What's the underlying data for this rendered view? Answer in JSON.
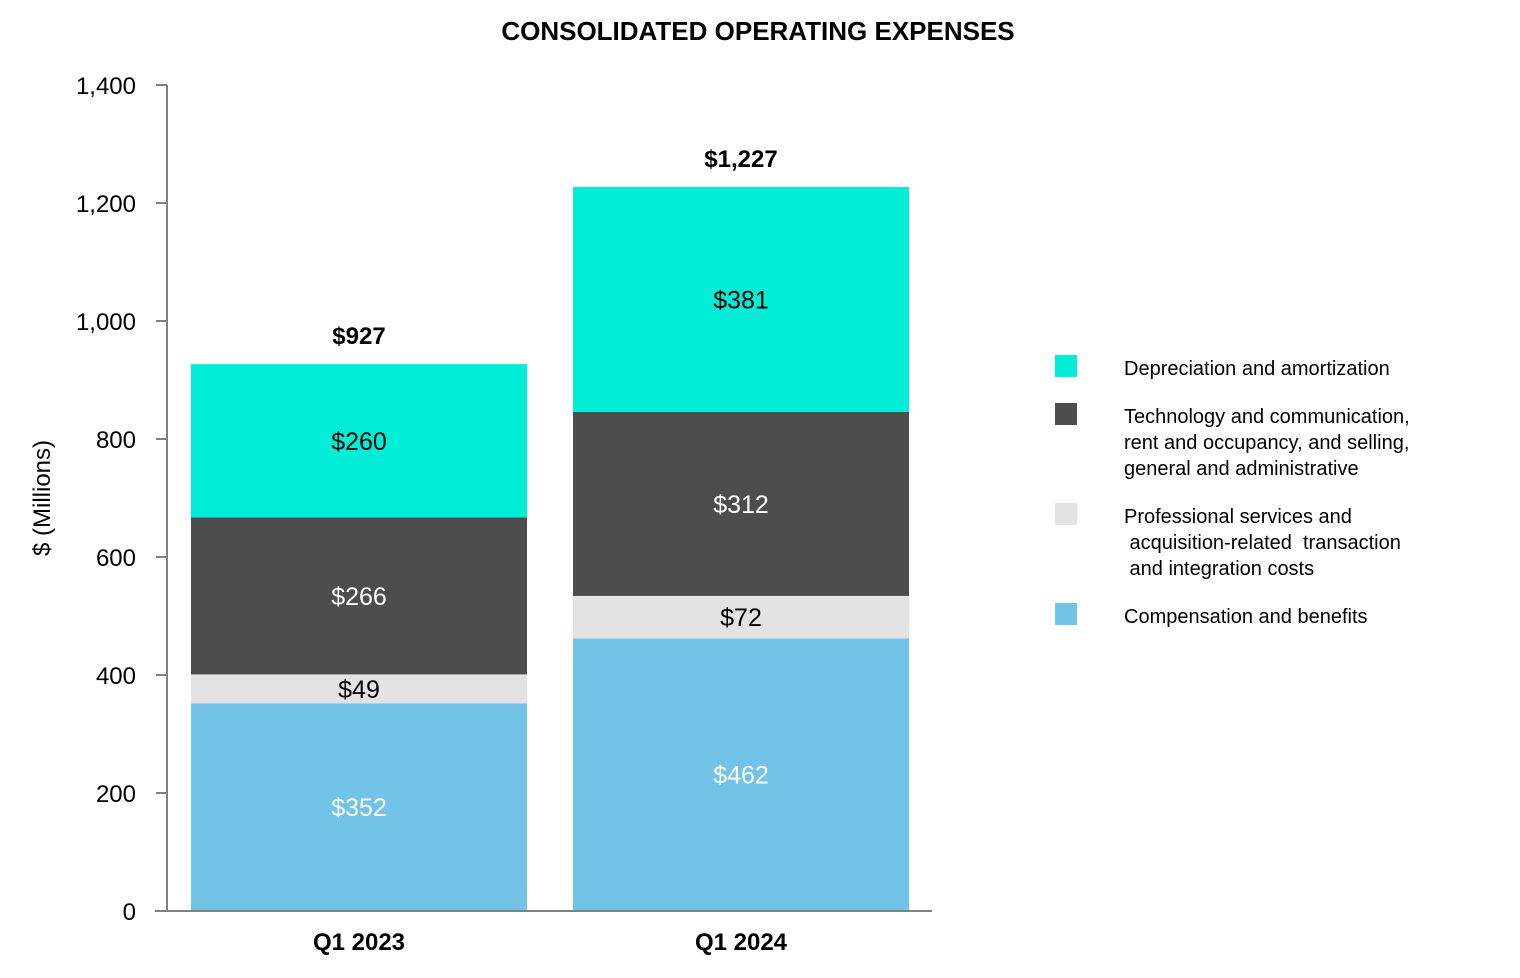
{
  "chart_data": {
    "type": "bar",
    "stacked": true,
    "title": "CONSOLIDATED OPERATING EXPENSES",
    "xlabel": "",
    "ylabel": "$ (Millions)",
    "ylim": [
      0,
      1400
    ],
    "yticks": [
      0,
      200,
      400,
      600,
      800,
      1000,
      1200,
      1400
    ],
    "ytick_labels": [
      "0",
      "200",
      "400",
      "600",
      "800",
      "1,000",
      "1,200",
      "1,400"
    ],
    "categories": [
      "Q1 2023",
      "Q1 2024"
    ],
    "totals": [
      927,
      1227
    ],
    "total_labels": [
      "$927",
      "$1,227"
    ],
    "series": [
      {
        "name": "Compensation and benefits",
        "legend_lines": [
          "Compensation and benefits"
        ],
        "color": "#71C3E7",
        "label_color": "#ffffff",
        "values": [
          352,
          462
        ],
        "labels": [
          "$352",
          "$462"
        ]
      },
      {
        "name": "Professional services and acquisition-related transaction and integration costs",
        "legend_lines": [
          "Professional services and",
          " acquisition-related  transaction",
          " and integration costs"
        ],
        "color": "#E3E3E3",
        "label_color": "#000000",
        "values": [
          49,
          72
        ],
        "labels": [
          "$49",
          "$72"
        ]
      },
      {
        "name": "Technology and communication, rent and occupancy, and selling, general and administrative",
        "legend_lines": [
          "Technology and communication,",
          "rent and occupancy, and selling,",
          "general and administrative"
        ],
        "color": "#4D4D4D",
        "label_color": "#ffffff",
        "values": [
          266,
          312
        ],
        "labels": [
          "$266",
          "$312"
        ]
      },
      {
        "name": "Depreciation and amortization",
        "legend_lines": [
          "Depreciation and amortization"
        ],
        "color": "#00EDD8",
        "label_color": "#000000",
        "values": [
          260,
          381
        ],
        "labels": [
          "$260",
          "$381"
        ]
      }
    ],
    "legend_order": [
      3,
      2,
      1,
      0
    ],
    "legend_position": "right",
    "grid": false
  }
}
